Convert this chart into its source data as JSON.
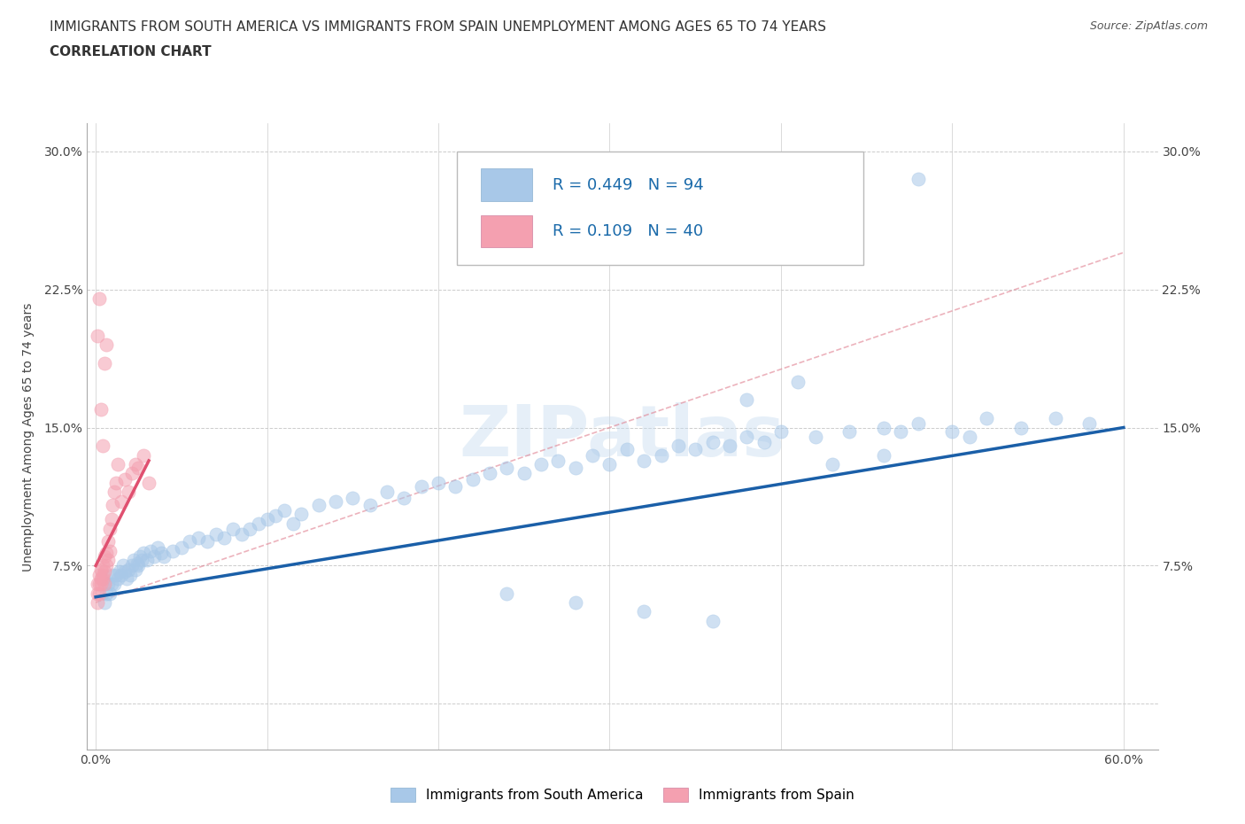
{
  "title_line1": "IMMIGRANTS FROM SOUTH AMERICA VS IMMIGRANTS FROM SPAIN UNEMPLOYMENT AMONG AGES 65 TO 74 YEARS",
  "title_line2": "CORRELATION CHART",
  "source": "Source: ZipAtlas.com",
  "ylabel": "Unemployment Among Ages 65 to 74 years",
  "xlim": [
    -0.005,
    0.62
  ],
  "ylim": [
    -0.025,
    0.315
  ],
  "xticks": [
    0.0,
    0.1,
    0.2,
    0.3,
    0.4,
    0.5,
    0.6
  ],
  "xticklabels": [
    "0.0%",
    "",
    "",
    "",
    "",
    "",
    "60.0%"
  ],
  "yticks": [
    0.0,
    0.075,
    0.15,
    0.225,
    0.3
  ],
  "yticklabels": [
    "",
    "7.5%",
    "15.0%",
    "22.5%",
    "30.0%"
  ],
  "R_blue": 0.449,
  "N_blue": 94,
  "R_pink": 0.109,
  "N_pink": 40,
  "color_blue": "#a8c8e8",
  "color_pink": "#f4a0b0",
  "color_blue_line": "#1a5fa8",
  "color_pink_line": "#e05070",
  "color_text_legend": "#1a6aaa",
  "watermark": "ZIPatlas",
  "legend_label_blue": "Immigrants from South America",
  "legend_label_pink": "Immigrants from Spain",
  "blue_scatter_x": [
    0.005,
    0.006,
    0.007,
    0.008,
    0.009,
    0.01,
    0.011,
    0.012,
    0.013,
    0.014,
    0.015,
    0.016,
    0.017,
    0.018,
    0.019,
    0.02,
    0.021,
    0.022,
    0.023,
    0.024,
    0.025,
    0.026,
    0.027,
    0.028,
    0.03,
    0.032,
    0.034,
    0.036,
    0.038,
    0.04,
    0.045,
    0.05,
    0.055,
    0.06,
    0.065,
    0.07,
    0.075,
    0.08,
    0.085,
    0.09,
    0.095,
    0.1,
    0.105,
    0.11,
    0.115,
    0.12,
    0.13,
    0.14,
    0.15,
    0.16,
    0.17,
    0.18,
    0.19,
    0.2,
    0.21,
    0.22,
    0.23,
    0.24,
    0.25,
    0.26,
    0.27,
    0.28,
    0.29,
    0.3,
    0.31,
    0.32,
    0.33,
    0.34,
    0.35,
    0.36,
    0.37,
    0.38,
    0.39,
    0.4,
    0.42,
    0.44,
    0.46,
    0.48,
    0.5,
    0.52,
    0.54,
    0.56,
    0.58,
    0.47,
    0.51,
    0.48,
    0.43,
    0.41,
    0.38,
    0.46,
    0.24,
    0.28,
    0.32,
    0.36
  ],
  "blue_scatter_y": [
    0.055,
    0.06,
    0.065,
    0.06,
    0.065,
    0.07,
    0.065,
    0.07,
    0.068,
    0.072,
    0.07,
    0.075,
    0.072,
    0.068,
    0.073,
    0.07,
    0.075,
    0.078,
    0.073,
    0.076,
    0.075,
    0.08,
    0.078,
    0.082,
    0.078,
    0.083,
    0.08,
    0.085,
    0.082,
    0.08,
    0.083,
    0.085,
    0.088,
    0.09,
    0.088,
    0.092,
    0.09,
    0.095,
    0.092,
    0.095,
    0.098,
    0.1,
    0.102,
    0.105,
    0.098,
    0.103,
    0.108,
    0.11,
    0.112,
    0.108,
    0.115,
    0.112,
    0.118,
    0.12,
    0.118,
    0.122,
    0.125,
    0.128,
    0.125,
    0.13,
    0.132,
    0.128,
    0.135,
    0.13,
    0.138,
    0.132,
    0.135,
    0.14,
    0.138,
    0.142,
    0.14,
    0.145,
    0.142,
    0.148,
    0.145,
    0.148,
    0.15,
    0.152,
    0.148,
    0.155,
    0.15,
    0.155,
    0.152,
    0.148,
    0.145,
    0.285,
    0.13,
    0.175,
    0.165,
    0.135,
    0.06,
    0.055,
    0.05,
    0.045
  ],
  "pink_scatter_x": [
    0.001,
    0.001,
    0.001,
    0.002,
    0.002,
    0.002,
    0.003,
    0.003,
    0.003,
    0.004,
    0.004,
    0.004,
    0.005,
    0.005,
    0.005,
    0.006,
    0.006,
    0.007,
    0.007,
    0.008,
    0.008,
    0.009,
    0.01,
    0.011,
    0.012,
    0.013,
    0.015,
    0.017,
    0.019,
    0.021,
    0.023,
    0.025,
    0.028,
    0.031,
    0.001,
    0.002,
    0.003,
    0.004,
    0.005,
    0.006
  ],
  "pink_scatter_y": [
    0.06,
    0.065,
    0.055,
    0.065,
    0.07,
    0.06,
    0.068,
    0.073,
    0.065,
    0.07,
    0.075,
    0.068,
    0.072,
    0.08,
    0.065,
    0.075,
    0.082,
    0.078,
    0.088,
    0.083,
    0.095,
    0.1,
    0.108,
    0.115,
    0.12,
    0.13,
    0.11,
    0.122,
    0.115,
    0.125,
    0.13,
    0.128,
    0.135,
    0.12,
    0.2,
    0.22,
    0.16,
    0.14,
    0.185,
    0.195
  ],
  "blue_line_x": [
    0.0,
    0.6
  ],
  "blue_line_y": [
    0.058,
    0.15
  ],
  "pink_line_x": [
    0.0,
    0.031
  ],
  "pink_line_y": [
    0.075,
    0.132
  ],
  "dashed_line_x": [
    0.0,
    0.6
  ],
  "dashed_line_y": [
    0.055,
    0.245
  ],
  "dashed_color": "#e08090",
  "title_fontsize": 11,
  "axis_label_fontsize": 10,
  "tick_fontsize": 10,
  "legend_fontsize": 13,
  "scatter_size": 120,
  "scatter_alpha": 0.55
}
